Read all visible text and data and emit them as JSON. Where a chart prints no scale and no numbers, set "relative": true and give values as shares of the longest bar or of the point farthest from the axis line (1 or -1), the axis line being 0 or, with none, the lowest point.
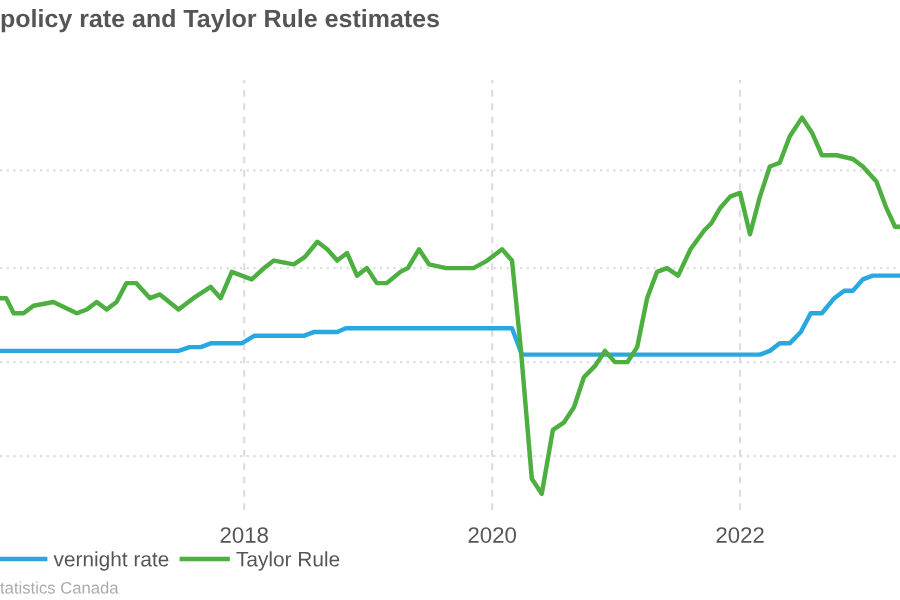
{
  "chart_data": {
    "type": "line",
    "title": "policy rate and Taylor Rule estimates",
    "relative": true,
    "xlim": [
      2016.03,
      2023.29
    ],
    "xticks": [
      2018,
      2020,
      2022
    ],
    "grid": true,
    "legend": "bottom left",
    "marker": "none",
    "line_style": "solid",
    "annotations": [
      "tatistics Canada"
    ],
    "series": [
      {
        "name": "vernight rate",
        "color": "#29a8e0",
        "x": [
          2016.03,
          2017.47,
          2017.56,
          2017.65,
          2017.73,
          2017.98,
          2018.08,
          2018.48,
          2018.56,
          2018.75,
          2018.82,
          2020.16,
          2020.24,
          2022.16,
          2022.24,
          2022.32,
          2022.4,
          2022.49,
          2022.57,
          2022.66,
          2022.76,
          2022.84,
          2022.91,
          2022.99,
          2023.07,
          2023.29
        ],
        "values": [
          0.38,
          0.38,
          0.39,
          0.39,
          0.4,
          0.4,
          0.42,
          0.42,
          0.43,
          0.43,
          0.44,
          0.44,
          0.37,
          0.37,
          0.38,
          0.4,
          0.4,
          0.43,
          0.48,
          0.48,
          0.52,
          0.54,
          0.54,
          0.57,
          0.58,
          0.58
        ]
      },
      {
        "name": "Taylor Rule",
        "color": "#4caf3f",
        "x": [
          2016.03,
          2016.08,
          2016.14,
          2016.22,
          2016.3,
          2016.46,
          2016.65,
          2016.73,
          2016.81,
          2016.89,
          2016.97,
          2017.05,
          2017.13,
          2017.24,
          2017.32,
          2017.47,
          2017.59,
          2017.73,
          2017.81,
          2017.9,
          2018.06,
          2018.16,
          2018.24,
          2018.4,
          2018.49,
          2018.59,
          2018.67,
          2018.75,
          2018.83,
          2018.91,
          2018.99,
          2019.07,
          2019.15,
          2019.26,
          2019.32,
          2019.41,
          2019.49,
          2019.63,
          2019.74,
          2019.85,
          2019.96,
          2020.08,
          2020.16,
          2020.23,
          2020.32,
          2020.4,
          2020.49,
          2020.58,
          2020.66,
          2020.74,
          2020.83,
          2020.91,
          2020.99,
          2021.09,
          2021.17,
          2021.25,
          2021.33,
          2021.41,
          2021.5,
          2021.6,
          2021.71,
          2021.77,
          2021.84,
          2021.92,
          2022.0,
          2022.08,
          2022.16,
          2022.24,
          2022.32,
          2022.4,
          2022.5,
          2022.58,
          2022.66,
          2022.78,
          2022.91,
          2022.99,
          2023.1,
          2023.18,
          2023.25,
          2023.29
        ],
        "values": [
          0.52,
          0.52,
          0.48,
          0.48,
          0.5,
          0.51,
          0.48,
          0.49,
          0.51,
          0.49,
          0.51,
          0.56,
          0.56,
          0.52,
          0.53,
          0.49,
          0.52,
          0.55,
          0.52,
          0.59,
          0.57,
          0.6,
          0.62,
          0.61,
          0.63,
          0.67,
          0.65,
          0.62,
          0.64,
          0.58,
          0.6,
          0.56,
          0.56,
          0.59,
          0.6,
          0.65,
          0.61,
          0.6,
          0.6,
          0.6,
          0.62,
          0.65,
          0.62,
          0.39,
          0.04,
          0.0,
          0.17,
          0.19,
          0.23,
          0.31,
          0.34,
          0.38,
          0.35,
          0.35,
          0.39,
          0.52,
          0.59,
          0.6,
          0.58,
          0.65,
          0.7,
          0.72,
          0.76,
          0.79,
          0.8,
          0.69,
          0.79,
          0.87,
          0.88,
          0.95,
          1.0,
          0.96,
          0.9,
          0.9,
          0.89,
          0.87,
          0.83,
          0.76,
          0.71,
          0.71
        ]
      }
    ]
  }
}
